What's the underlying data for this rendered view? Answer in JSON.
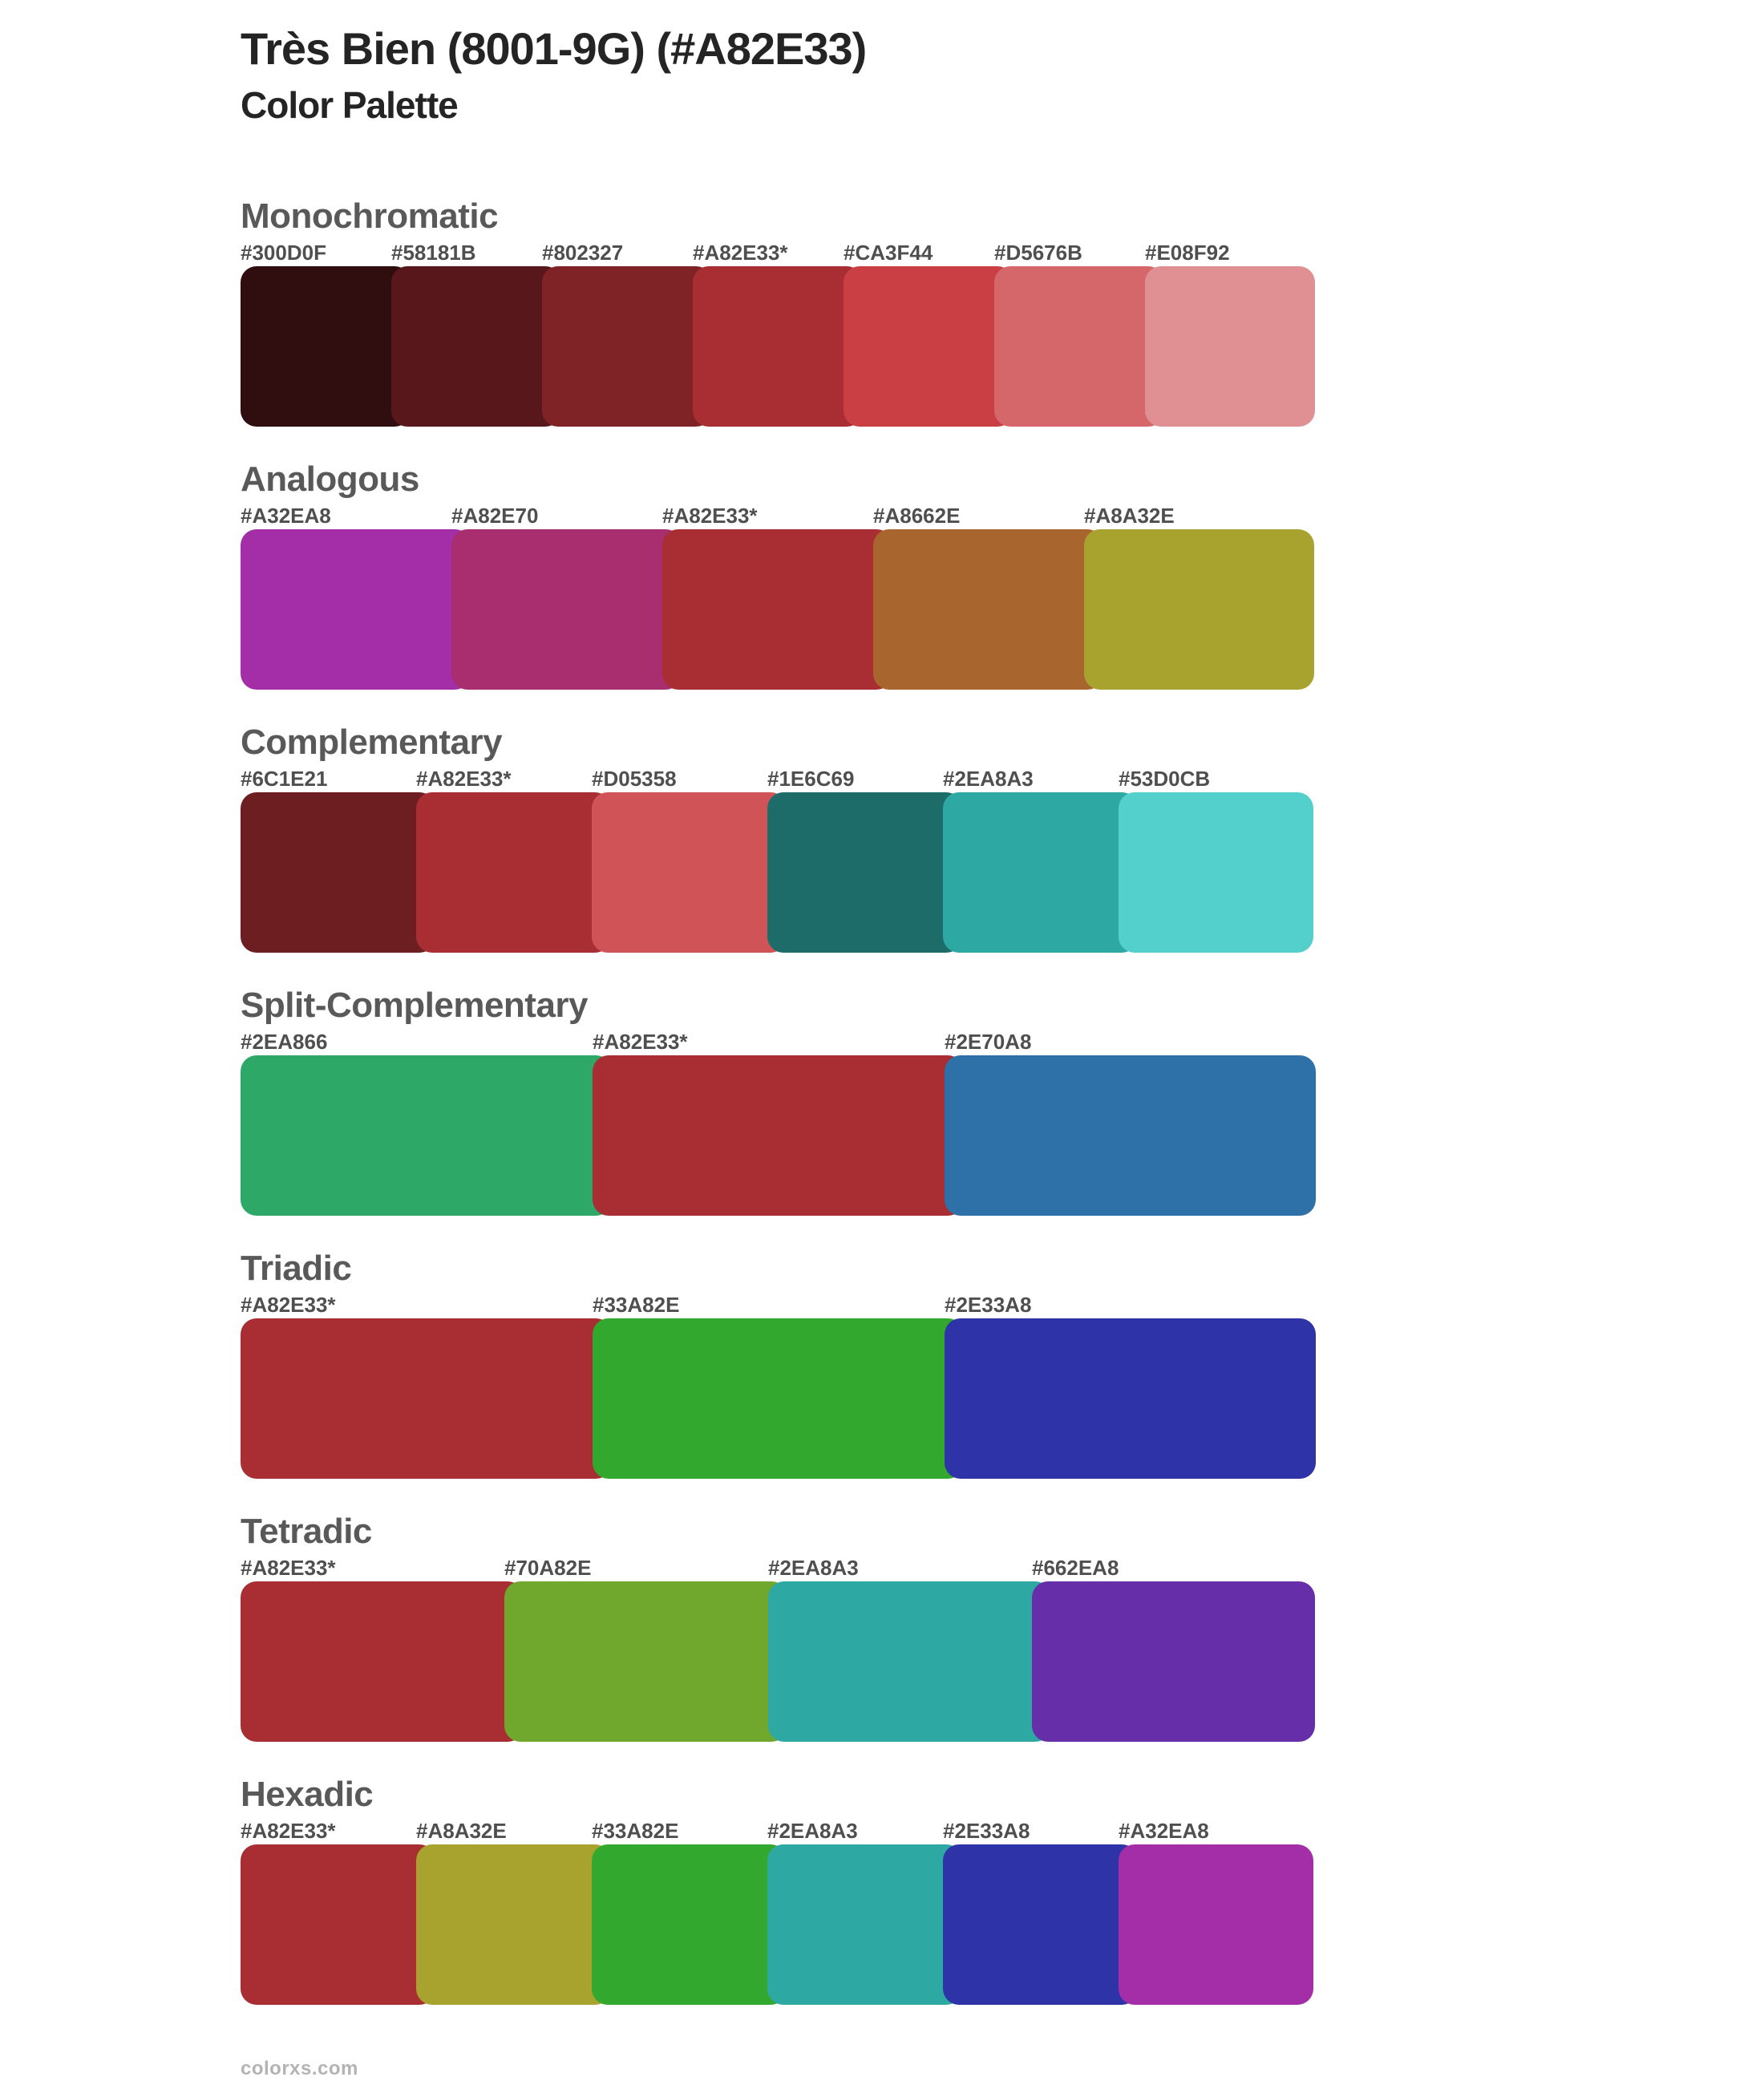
{
  "page": {
    "title": "Très Bien (8001-9G) (#A82E33)",
    "subtitle": "Color Palette",
    "footer": "colorxs.com"
  },
  "base_color": "#A82E33",
  "text_colors": {
    "title": "#242424",
    "section_heading": "#595959",
    "hex_label": "#4f4f4f",
    "footer": "#b3b3b3"
  },
  "sections": [
    {
      "name": "Monochromatic",
      "colors": [
        {
          "label": "#300D0F",
          "hex": "#300D0F"
        },
        {
          "label": "#58181B",
          "hex": "#58181B"
        },
        {
          "label": "#802327",
          "hex": "#802327"
        },
        {
          "label": "#A82E33*",
          "hex": "#A82E33"
        },
        {
          "label": "#CA3F44",
          "hex": "#CA3F44"
        },
        {
          "label": "#D5676B",
          "hex": "#D5676B"
        },
        {
          "label": "#E08F92",
          "hex": "#E08F92"
        }
      ]
    },
    {
      "name": "Analogous",
      "colors": [
        {
          "label": "#A32EA8",
          "hex": "#A32EA8"
        },
        {
          "label": "#A82E70",
          "hex": "#A82E70"
        },
        {
          "label": "#A82E33*",
          "hex": "#A82E33"
        },
        {
          "label": "#A8662E",
          "hex": "#A8662E"
        },
        {
          "label": "#A8A32E",
          "hex": "#A8A32E"
        }
      ]
    },
    {
      "name": "Complementary",
      "colors": [
        {
          "label": "#6C1E21",
          "hex": "#6C1E21"
        },
        {
          "label": "#A82E33*",
          "hex": "#A82E33"
        },
        {
          "label": "#D05358",
          "hex": "#D05358"
        },
        {
          "label": "#1E6C69",
          "hex": "#1E6C69"
        },
        {
          "label": "#2EA8A3",
          "hex": "#2EA8A3"
        },
        {
          "label": "#53D0CB",
          "hex": "#53D0CB"
        }
      ]
    },
    {
      "name": "Split-Complementary",
      "colors": [
        {
          "label": "#2EA866",
          "hex": "#2EA866"
        },
        {
          "label": "#A82E33*",
          "hex": "#A82E33"
        },
        {
          "label": "#2E70A8",
          "hex": "#2E70A8"
        }
      ]
    },
    {
      "name": "Triadic",
      "colors": [
        {
          "label": "#A82E33*",
          "hex": "#A82E33"
        },
        {
          "label": "#33A82E",
          "hex": "#33A82E"
        },
        {
          "label": "#2E33A8",
          "hex": "#2E33A8"
        }
      ]
    },
    {
      "name": "Tetradic",
      "colors": [
        {
          "label": "#A82E33*",
          "hex": "#A82E33"
        },
        {
          "label": "#70A82E",
          "hex": "#70A82E"
        },
        {
          "label": "#2EA8A3",
          "hex": "#2EA8A3"
        },
        {
          "label": "#662EA8",
          "hex": "#662EA8"
        }
      ]
    },
    {
      "name": "Hexadic",
      "colors": [
        {
          "label": "#A82E33*",
          "hex": "#A82E33"
        },
        {
          "label": "#A8A32E",
          "hex": "#A8A32E"
        },
        {
          "label": "#33A82E",
          "hex": "#33A82E"
        },
        {
          "label": "#2EA8A3",
          "hex": "#2EA8A3"
        },
        {
          "label": "#2E33A8",
          "hex": "#2E33A8"
        },
        {
          "label": "#A32EA8",
          "hex": "#A32EA8"
        }
      ]
    }
  ],
  "layout": {
    "row_total_width": 1340,
    "swatch_overlap": 24
  }
}
